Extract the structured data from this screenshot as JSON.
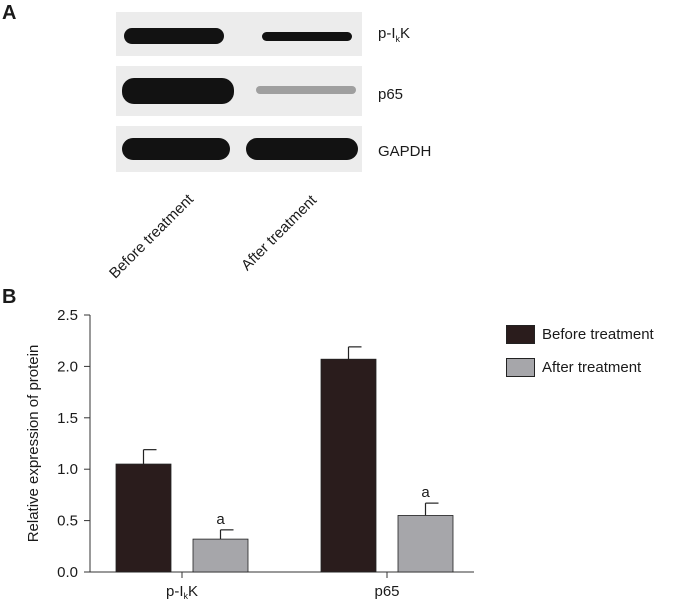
{
  "panel_a": {
    "label": "A",
    "blots": [
      {
        "name": "p-I",
        "sub": "k",
        "suffix": "K",
        "before_intensity": 0.95,
        "after_intensity": 0.45
      },
      {
        "name": "p65",
        "sub": "",
        "suffix": "",
        "before_intensity": 0.95,
        "after_intensity": 0.2
      },
      {
        "name": "GAPDH",
        "sub": "",
        "suffix": "",
        "before_intensity": 1.0,
        "after_intensity": 1.0
      }
    ],
    "lanes": [
      "Before treatment",
      "After treatment"
    ]
  },
  "panel_b": {
    "label": "B"
  },
  "colors": {
    "before": "#2a1c1c",
    "after": "#a6a6aa",
    "axis": "#333333"
  },
  "chart_data": {
    "type": "bar",
    "categories": [
      {
        "main": "p-I",
        "sub": "k",
        "suffix": "K"
      },
      {
        "main": "p65",
        "sub": "",
        "suffix": ""
      }
    ],
    "series": [
      {
        "name": "Before treatment",
        "values": [
          1.05,
          2.07
        ],
        "errors": [
          0.14,
          0.12
        ],
        "annotations": [
          "",
          ""
        ]
      },
      {
        "name": "After treatment",
        "values": [
          0.32,
          0.55
        ],
        "errors": [
          0.09,
          0.12
        ],
        "annotations": [
          "a",
          "a"
        ]
      }
    ],
    "ylabel": "Relative expression of  protein",
    "xlabel": "",
    "ylim": [
      0,
      2.5
    ],
    "yticks": [
      0.0,
      0.5,
      1.0,
      1.5,
      2.0,
      2.5
    ],
    "ytick_labels": [
      "0.0",
      "0.5",
      "1.0",
      "1.5",
      "2.0",
      "2.5"
    ],
    "legend_position": "right"
  }
}
